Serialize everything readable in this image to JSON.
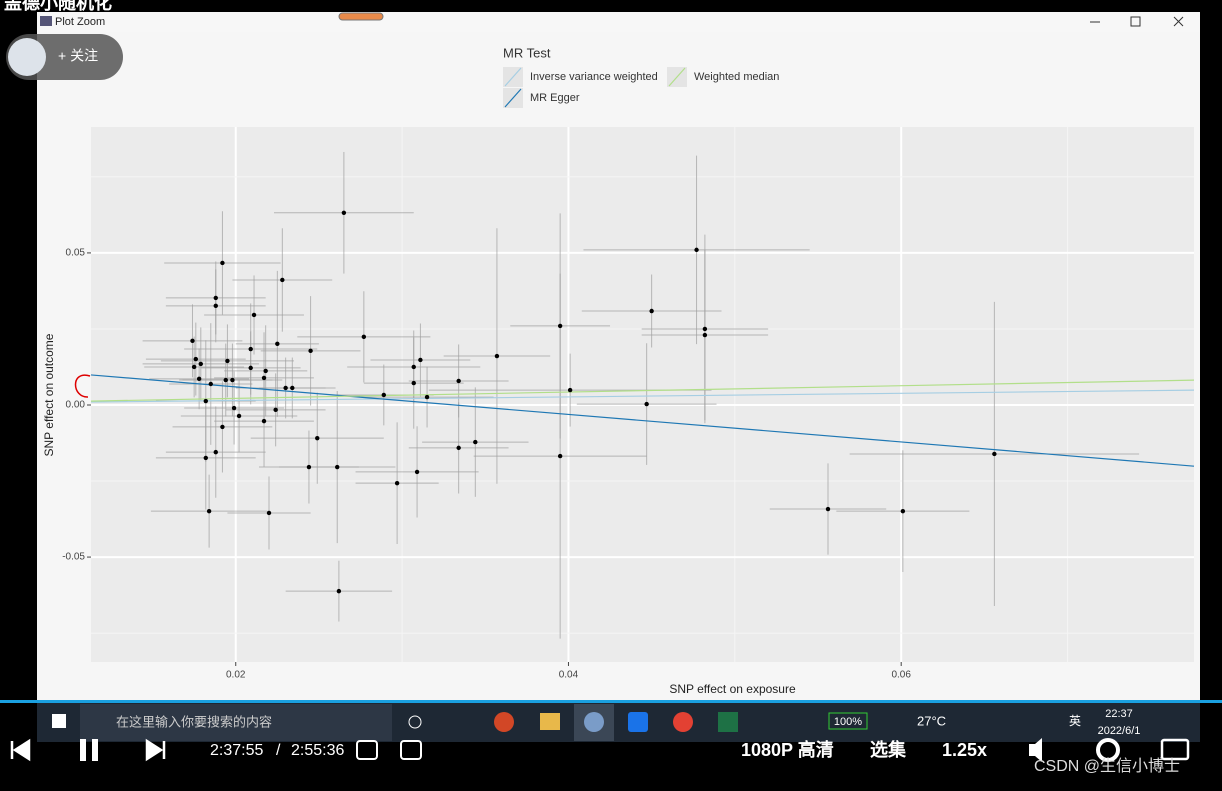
{
  "video_title": "盖德小随机化",
  "window": {
    "title": "Plot Zoom"
  },
  "follow_button": "+ 关注",
  "chart_data": {
    "type": "scatter",
    "legend_title": "MR Test",
    "xlabel": "SNP effect on exposure",
    "ylabel": "SNP effect on outcome",
    "xlim": [
      0.0113,
      0.0776
    ],
    "ylim": [
      -0.0845,
      0.0914
    ],
    "xticks": [
      0.02,
      0.04,
      0.06
    ],
    "yticks": [
      -0.05,
      {
        "value": 0,
        "label": "0.00"
      },
      0.05
    ],
    "grid": true,
    "point_color": "#000000",
    "errorbar_color": "#9e9e9e",
    "points": {
      "x": [
        0.0265,
        0.0192,
        0.0228,
        0.0477,
        0.0188,
        0.0188,
        0.0211,
        0.045,
        0.0395,
        0.0482,
        0.0482,
        0.0277,
        0.0174,
        0.0225,
        0.0209,
        0.0245,
        0.0357,
        0.0176,
        0.0195,
        0.0311,
        0.0179,
        0.0175,
        0.0307,
        0.0209,
        0.0218,
        0.0217,
        0.0178,
        0.0194,
        0.0198,
        0.0334,
        0.0307,
        0.0185,
        0.023,
        0.0234,
        0.0401,
        0.0289,
        0.0315,
        0.0182,
        0.0447,
        0.0199,
        0.0224,
        0.0202,
        0.0217,
        0.0192,
        0.0249,
        0.0344,
        0.0334,
        0.0188,
        0.0395,
        0.0656,
        0.0182,
        0.0244,
        0.0261,
        0.0309,
        0.0297,
        0.0556,
        0.0601,
        0.0184,
        0.022,
        0.0262
      ],
      "y": [
        0.0632,
        0.0467,
        0.0411,
        0.051,
        0.0352,
        0.0326,
        0.0296,
        0.0309,
        0.026,
        0.025,
        0.023,
        0.0224,
        0.0211,
        0.0201,
        0.0184,
        0.0178,
        0.0161,
        0.0151,
        0.0145,
        0.0148,
        0.0135,
        0.0125,
        0.0125,
        0.0122,
        0.0112,
        0.0089,
        0.0086,
        0.0082,
        0.0082,
        0.0079,
        0.0072,
        0.0069,
        0.0056,
        0.0056,
        0.0049,
        0.0033,
        0.0026,
        0.0013,
        0.0003,
        -0.001,
        -0.0016,
        -0.0036,
        -0.0053,
        -0.0072,
        -0.0109,
        -0.0122,
        -0.0141,
        -0.0155,
        -0.0168,
        -0.0161,
        -0.0174,
        -0.0204,
        -0.0204,
        -0.022,
        -0.0257,
        -0.0342,
        -0.0349,
        -0.0349,
        -0.0355,
        -0.0612
      ],
      "xerr": [
        0.0042,
        0.0035,
        0.003,
        0.0068,
        0.003,
        0.003,
        0.003,
        0.0042,
        0.003,
        0.0038,
        0.0038,
        0.004,
        0.003,
        0.0025,
        0.004,
        0.003,
        0.0032,
        0.003,
        0.004,
        0.003,
        0.0035,
        0.003,
        0.004,
        0.003,
        0.0025,
        0.003,
        0.003,
        0.0028,
        0.003,
        0.003,
        0.003,
        0.0025,
        0.003,
        0.002,
        0.0085,
        0.003,
        0.004,
        0.003,
        0.0042,
        0.003,
        0.003,
        0.0035,
        0.003,
        0.003,
        0.004,
        0.0032,
        0.003,
        0.003,
        0.0052,
        0.0087,
        0.003,
        0.003,
        0.0035,
        0.0037,
        0.0025,
        0.0035,
        0.004,
        0.0035,
        0.0025,
        0.0032
      ],
      "yerr": [
        0.02,
        0.017,
        0.017,
        0.031,
        0.012,
        0.012,
        0.013,
        0.012,
        0.037,
        0.031,
        0.028,
        0.015,
        0.012,
        0.024,
        0.015,
        0.018,
        0.042,
        0.012,
        0.012,
        0.012,
        0.012,
        0.01,
        0.012,
        0.012,
        0.015,
        0.015,
        0.01,
        0.012,
        0.012,
        0.012,
        0.015,
        0.02,
        0.01,
        0.01,
        0.012,
        0.01,
        0.01,
        0.02,
        0.02,
        0.012,
        0.012,
        0.012,
        0.015,
        0.015,
        0.015,
        0.018,
        0.015,
        0.015,
        0.06,
        0.05,
        0.017,
        0.012,
        0.025,
        0.015,
        0.02,
        0.015,
        0.02,
        0.012,
        0.012,
        0.01
      ]
    },
    "lines": [
      {
        "name": "Inverse variance weighted",
        "color": "#a6cee3",
        "slope": 0.059,
        "intercept": 0.0003
      },
      {
        "name": "MR Egger",
        "color": "#1f78b4",
        "slope": -0.4525,
        "intercept": 0.015
      },
      {
        "name": "Weighted median",
        "color": "#b2df8a",
        "slope": 0.104,
        "intercept": 0.0001
      }
    ]
  },
  "taskbar": {
    "search": "在这里输入你要搜索的内容",
    "battery": "100%",
    "weather": "27°C",
    "ime": "英",
    "time": "22:37",
    "date": "2022/6/1"
  },
  "player": {
    "current": "2:37:55",
    "separator": "/",
    "total": "2:55:36",
    "quality": "1080P 高清",
    "episodes": "选集",
    "speed": "1.25x",
    "watermark": "CSDN @生信小博士"
  }
}
